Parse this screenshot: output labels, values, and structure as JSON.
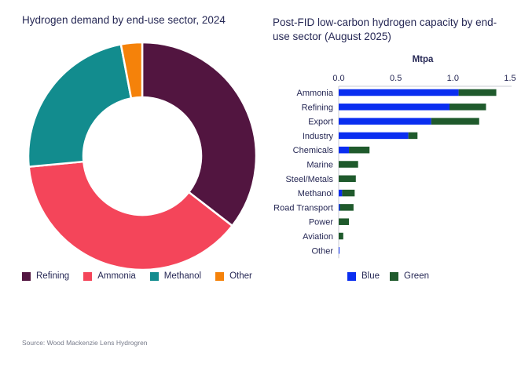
{
  "chart_data": [
    {
      "type": "pie",
      "variant": "donut",
      "title": "Hydrogen demand by end-use sector, 2024",
      "start": "12 o'clock, clockwise",
      "slices": [
        {
          "label": "Refining",
          "value": 35.5,
          "color": "#521540"
        },
        {
          "label": "Ammonia",
          "value": 38.0,
          "color": "#F4455A"
        },
        {
          "label": "Methanol",
          "value": 23.5,
          "color": "#128C8E"
        },
        {
          "label": "Other",
          "value": 3.0,
          "color": "#F5820A"
        }
      ],
      "units": "share of demand (%)",
      "legend_position": "bottom-left"
    },
    {
      "type": "bar",
      "orientation": "horizontal",
      "stacked": true,
      "title": "Post-FID low-carbon hydrogen capacity by end-use sector (August 2025)",
      "xlabel": "Mtpa",
      "xlabel_position": "top",
      "xlim": [
        0,
        1.5
      ],
      "xticks": [
        "0.0",
        "0.5",
        "1.0",
        "1.5"
      ],
      "xtick_values": [
        0,
        0.5,
        1.0,
        1.5
      ],
      "categories": [
        "Ammonia",
        "Refining",
        "Export",
        "Industry",
        "Chemicals",
        "Marine",
        "Steel/Metals",
        "Methanol",
        "Road Transport",
        "Power",
        "Aviation",
        "Other"
      ],
      "series": [
        {
          "name": "Blue",
          "color": "#0A2EF0",
          "values": [
            1.05,
            0.97,
            0.81,
            0.61,
            0.09,
            0.0,
            0.0,
            0.03,
            0.01,
            0.0,
            0.0,
            0.005
          ]
        },
        {
          "name": "Green",
          "color": "#1F5A2C",
          "values": [
            0.33,
            0.32,
            0.42,
            0.08,
            0.18,
            0.17,
            0.15,
            0.11,
            0.12,
            0.09,
            0.04,
            0.0
          ]
        }
      ],
      "legend_position": "bottom"
    }
  ],
  "texts": {
    "left_title": "Hydrogen demand by end-use sector, 2024",
    "right_title": "Post-FID low-carbon hydrogen capacity by end-use sector (August 2025)",
    "unit_label": "Mtpa",
    "source": "Source: Wood Mackenzie Lens Hydrogren"
  },
  "colors": {
    "text": "#262855",
    "axis": "#c9cbd3"
  }
}
